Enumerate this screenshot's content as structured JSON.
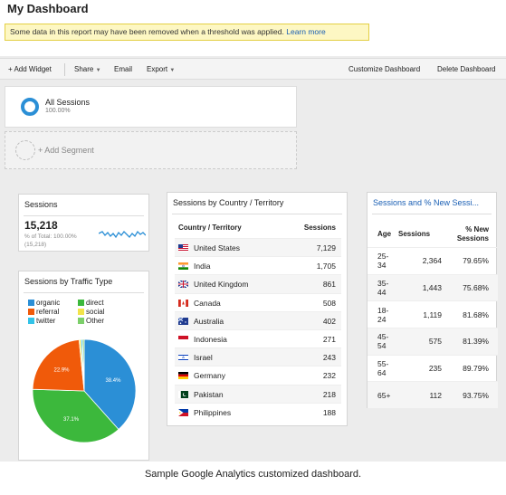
{
  "header": {
    "title": "My Dashboard",
    "notice_text": "Some data in this report may have been removed when a threshold was applied.",
    "notice_link": "Learn more"
  },
  "toolbar": {
    "add_widget": "+ Add Widget",
    "share": "Share",
    "email": "Email",
    "export": "Export",
    "customize": "Customize Dashboard",
    "delete": "Delete Dashboard"
  },
  "segments": {
    "active_name": "All Sessions",
    "active_pct": "100.00%",
    "add_label": "+ Add Segment"
  },
  "sessions_widget": {
    "title": "Sessions",
    "value": "15,218",
    "pct_of_total": "% of Total: 100.00%",
    "total": "(15,218)"
  },
  "traffic_widget": {
    "title": "Sessions by Traffic Type",
    "legend": [
      {
        "label": "organic",
        "color": "#2b8fd6"
      },
      {
        "label": "direct",
        "color": "#3cb83c"
      },
      {
        "label": "referral",
        "color": "#f05a0a"
      },
      {
        "label": "social",
        "color": "#f2e34a"
      },
      {
        "label": "twitter",
        "color": "#33c3e8"
      },
      {
        "label": "Other",
        "color": "#7ccf6a"
      }
    ]
  },
  "chart_data": {
    "type": "pie",
    "labels": [
      "organic",
      "direct",
      "referral",
      "social",
      "twitter",
      "Other"
    ],
    "values": [
      38.4,
      37.1,
      22.9,
      0.6,
      0.5,
      0.5
    ],
    "slice_labels": [
      "38.4%",
      "37.1%",
      "22.9%",
      "",
      "",
      ""
    ],
    "colors": [
      "#2b8fd6",
      "#3cb83c",
      "#f05a0a",
      "#f2e34a",
      "#33c3e8",
      "#7ccf6a"
    ],
    "legend_position": "top"
  },
  "country_widget": {
    "title": "Sessions by Country / Territory",
    "col_country": "Country / Territory",
    "col_sessions": "Sessions",
    "rows": [
      {
        "country": "United States",
        "sessions": "7,129",
        "flag": "us-flag-icon"
      },
      {
        "country": "India",
        "sessions": "1,705",
        "flag": "india-flag-icon"
      },
      {
        "country": "United Kingdom",
        "sessions": "861",
        "flag": "uk-flag-icon"
      },
      {
        "country": "Canada",
        "sessions": "508",
        "flag": "canada-flag-icon"
      },
      {
        "country": "Australia",
        "sessions": "402",
        "flag": "australia-flag-icon"
      },
      {
        "country": "Indonesia",
        "sessions": "271",
        "flag": "indonesia-flag-icon"
      },
      {
        "country": "Israel",
        "sessions": "243",
        "flag": "israel-flag-icon"
      },
      {
        "country": "Germany",
        "sessions": "232",
        "flag": "germany-flag-icon"
      },
      {
        "country": "Pakistan",
        "sessions": "218",
        "flag": "pakistan-flag-icon"
      },
      {
        "country": "Philippines",
        "sessions": "188",
        "flag": "philippines-flag-icon"
      }
    ]
  },
  "age_widget": {
    "title": "Sessions and % New Sessi...",
    "col_age": "Age",
    "col_sessions": "Sessions",
    "col_new_line1": "% New",
    "col_new_line2": "Sessions",
    "rows": [
      {
        "age_line1": "25-",
        "age_line2": "34",
        "sessions": "2,364",
        "pct_new": "79.65%"
      },
      {
        "age_line1": "35-",
        "age_line2": "44",
        "sessions": "1,443",
        "pct_new": "75.68%"
      },
      {
        "age_line1": "18-",
        "age_line2": "24",
        "sessions": "1,119",
        "pct_new": "81.68%"
      },
      {
        "age_line1": "45-",
        "age_line2": "54",
        "sessions": "575",
        "pct_new": "81.39%"
      },
      {
        "age_line1": "55-",
        "age_line2": "64",
        "sessions": "235",
        "pct_new": "89.79%"
      },
      {
        "age_line1": "65+",
        "age_line2": "",
        "sessions": "112",
        "pct_new": "93.75%"
      }
    ]
  },
  "caption": "Sample Google Analytics customized dashboard."
}
